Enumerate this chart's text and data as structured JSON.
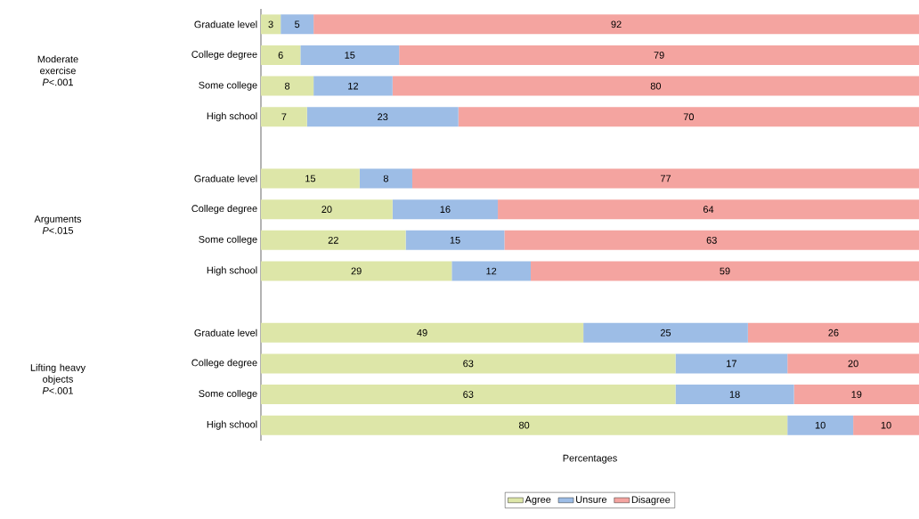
{
  "chart_data": {
    "type": "bar",
    "orientation": "horizontal",
    "stacked": true,
    "xlabel": "Percentages",
    "categories": [
      "Graduate level",
      "College degree",
      "Some college",
      "High school",
      "Graduate level",
      "College degree",
      "Some college",
      "High school",
      "Graduate level",
      "College degree",
      "Some college",
      "High school"
    ],
    "series": [
      {
        "name": "Agree",
        "color": "#dde6a8",
        "values": [
          3,
          6,
          8,
          7,
          15,
          20,
          22,
          29,
          49,
          63,
          63,
          80
        ],
        "value_labels": [
          "3",
          "6",
          "8",
          "7",
          "15",
          "20",
          "22",
          "29",
          "49",
          "63",
          "63",
          "80"
        ]
      },
      {
        "name": "Unsure",
        "color": "#9dbde6",
        "values": [
          5,
          15,
          12,
          23,
          8,
          16,
          15,
          12,
          25,
          17,
          18,
          10
        ],
        "value_labels": [
          "5",
          "15",
          "12",
          "23",
          "8",
          "16",
          "15",
          "12",
          "25",
          "17",
          "18",
          "10"
        ]
      },
      {
        "name": "Disagree",
        "color": "#f4a4a0",
        "values": [
          92,
          79,
          80,
          70,
          77,
          64,
          63,
          59,
          26,
          20,
          19,
          10
        ],
        "value_labels": [
          "92",
          "79",
          "80",
          "70",
          "77",
          "64",
          "63",
          "59",
          "26",
          "20",
          "19",
          "10"
        ]
      }
    ],
    "legend": "bottom",
    "annotations": [
      "Moderate exercise",
      "*P*<.001",
      "Arguments",
      "*P*<.015",
      "Lifting heavy objects",
      "*P*<.001"
    ]
  }
}
